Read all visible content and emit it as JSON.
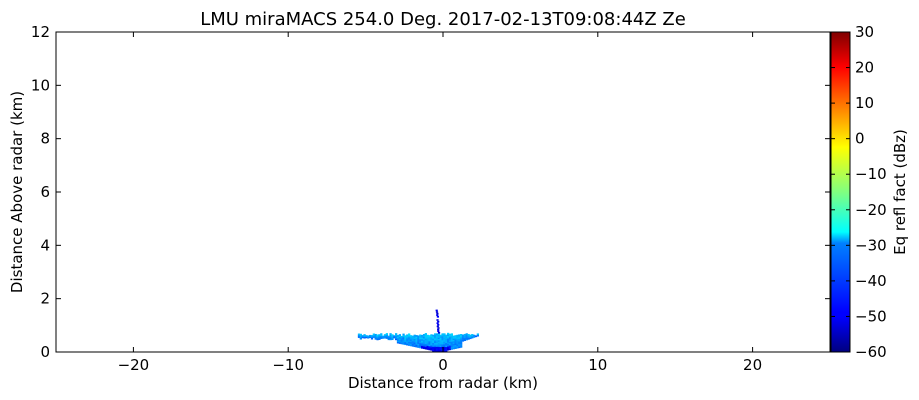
{
  "chart_data": {
    "type": "heatmap",
    "title": "LMU miraMACS 254.0 Deg. 2017-02-13T09:08:44Z  Ze",
    "xlabel": "Distance from radar (km)",
    "ylabel": "Distance Above radar  (km)",
    "xlim": [
      -25,
      25
    ],
    "ylim": [
      0,
      12
    ],
    "xticks": [
      -20,
      -10,
      0,
      10,
      20
    ],
    "xtick_labels": [
      "−20",
      "−10",
      "0",
      "10",
      "20"
    ],
    "yticks": [
      0,
      2,
      4,
      6,
      8,
      10,
      12
    ],
    "ytick_labels": [
      "0",
      "2",
      "4",
      "6",
      "8",
      "10",
      "12"
    ],
    "grid": false,
    "colorbar": {
      "label": "Eq refl fact (dBz)",
      "colormap": "jet",
      "range": [
        -60,
        30
      ],
      "ticks": [
        -60,
        -50,
        -40,
        -30,
        -20,
        -10,
        0,
        10,
        20,
        30
      ],
      "tick_labels": [
        "−60",
        "−50",
        "−40",
        "−30",
        "−20",
        "−10",
        "0",
        "10",
        "20",
        "30"
      ]
    },
    "features": [
      {
        "name": "low cloud layer",
        "x_range": [
          -5.5,
          2.3
        ],
        "y_range": [
          0.0,
          0.7
        ],
        "dbz_typical": -35
      },
      {
        "name": "vertical echo streak",
        "x_range": [
          -0.5,
          -0.2
        ],
        "y_range": [
          0.7,
          1.65
        ],
        "dbz_typical": -52
      }
    ]
  }
}
